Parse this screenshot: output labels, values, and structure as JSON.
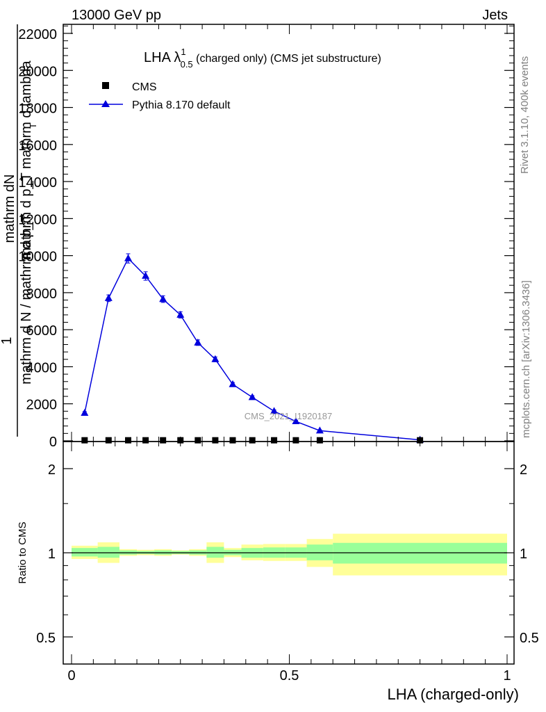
{
  "header": {
    "left": "13000 GeV pp",
    "right": "Jets"
  },
  "side_labels": {
    "rivet": "Rivet 3.1.10,  400k events",
    "mcplots": "mcplots.cern.ch [arXiv:1306.3436]"
  },
  "watermark": "CMS_2021_I1920187",
  "chart_data": [
    {
      "type": "line",
      "title_main": "LHA λ",
      "title_sup": "1",
      "title_sub": "0.5",
      "title_rest": " (charged only) (CMS jet substructure)",
      "ylabel_numerator": "mathrm dN",
      "ylabel_lines": [
        "mathrm d p_T mathrm d lambda",
        "mathrm d N / mathrm d p_T"
      ],
      "ylabel_prefix": "1",
      "ylabel_T": "T",
      "ylim": [
        0,
        22500
      ],
      "xlim": [
        -0.02,
        1.02
      ],
      "y_ticks": [
        0,
        2000,
        4000,
        6000,
        8000,
        10000,
        12000,
        14000,
        16000,
        18000,
        20000,
        22000
      ],
      "y_tick_labels": [
        "0",
        "2000",
        "4000",
        "6000",
        "8000",
        "10000",
        "12000",
        "14000",
        "16000",
        "18000",
        "20000",
        "22000"
      ],
      "legend": [
        {
          "name": "CMS",
          "marker": "square",
          "color": "#000000"
        },
        {
          "name": "Pythia 8.170 default",
          "marker": "triangle",
          "color": "#0000dd"
        }
      ],
      "series": [
        {
          "name": "Pythia 8.170 default",
          "color": "#0000dd",
          "x": [
            0.03,
            0.085,
            0.13,
            0.17,
            0.21,
            0.25,
            0.29,
            0.33,
            0.37,
            0.415,
            0.465,
            0.515,
            0.57,
            0.8
          ],
          "y": [
            1500,
            7700,
            9850,
            8900,
            7650,
            6800,
            5300,
            4400,
            3050,
            2350,
            1600,
            1050,
            550,
            50
          ],
          "err": [
            80,
            180,
            250,
            230,
            180,
            170,
            150,
            130,
            100,
            90,
            70,
            60,
            40,
            20
          ]
        },
        {
          "name": "CMS",
          "color": "#000000",
          "x": [
            0.03,
            0.085,
            0.13,
            0.17,
            0.21,
            0.25,
            0.29,
            0.33,
            0.37,
            0.415,
            0.465,
            0.515,
            0.57,
            0.8
          ],
          "y": [
            30,
            30,
            30,
            30,
            30,
            30,
            30,
            30,
            30,
            30,
            30,
            30,
            30,
            30
          ]
        }
      ]
    },
    {
      "type": "area",
      "ylabel": "Ratio to CMS",
      "xlabel": "LHA (charged-only)",
      "ylim": [
        0.37,
        2.3
      ],
      "xlim": [
        -0.02,
        1.02
      ],
      "y_scale": "log",
      "y_ticks": [
        0.5,
        1,
        2
      ],
      "y_tick_labels": [
        "0.5",
        "1",
        "2"
      ],
      "x_ticks": [
        0,
        0.5,
        1
      ],
      "x_tick_labels": [
        "0",
        "0.5",
        "1"
      ],
      "bins": [
        {
          "lo": 0.0,
          "hi": 0.06,
          "g": [
            0.97,
            1.04
          ],
          "y": [
            0.95,
            1.06
          ]
        },
        {
          "lo": 0.06,
          "hi": 0.11,
          "g": [
            0.96,
            1.05
          ],
          "y": [
            0.92,
            1.09
          ]
        },
        {
          "lo": 0.11,
          "hi": 0.15,
          "g": [
            0.985,
            1.02
          ],
          "y": [
            0.975,
            1.03
          ]
        },
        {
          "lo": 0.15,
          "hi": 0.19,
          "g": [
            0.99,
            1.015
          ],
          "y": [
            0.98,
            1.025
          ]
        },
        {
          "lo": 0.19,
          "hi": 0.23,
          "g": [
            0.985,
            1.02
          ],
          "y": [
            0.975,
            1.03
          ]
        },
        {
          "lo": 0.23,
          "hi": 0.27,
          "g": [
            0.99,
            1.015
          ],
          "y": [
            0.985,
            1.02
          ]
        },
        {
          "lo": 0.27,
          "hi": 0.31,
          "g": [
            0.985,
            1.02
          ],
          "y": [
            0.975,
            1.03
          ]
        },
        {
          "lo": 0.31,
          "hi": 0.35,
          "g": [
            0.96,
            1.05
          ],
          "y": [
            0.92,
            1.09
          ]
        },
        {
          "lo": 0.35,
          "hi": 0.39,
          "g": [
            0.98,
            1.025
          ],
          "y": [
            0.965,
            1.04
          ]
        },
        {
          "lo": 0.39,
          "hi": 0.44,
          "g": [
            0.96,
            1.04
          ],
          "y": [
            0.94,
            1.07
          ]
        },
        {
          "lo": 0.44,
          "hi": 0.49,
          "g": [
            0.96,
            1.045
          ],
          "y": [
            0.935,
            1.075
          ]
        },
        {
          "lo": 0.49,
          "hi": 0.54,
          "g": [
            0.96,
            1.045
          ],
          "y": [
            0.935,
            1.075
          ]
        },
        {
          "lo": 0.54,
          "hi": 0.6,
          "g": [
            0.94,
            1.07
          ],
          "y": [
            0.89,
            1.12
          ]
        },
        {
          "lo": 0.6,
          "hi": 1.0,
          "g": [
            0.915,
            1.085
          ],
          "y": [
            0.83,
            1.17
          ]
        }
      ]
    }
  ],
  "colors": {
    "mc": "#0000dd",
    "data": "#000000",
    "band_inner": "#99ff99",
    "band_outer": "#ffff99",
    "side_text": "#808080",
    "watermark": "#999999"
  }
}
